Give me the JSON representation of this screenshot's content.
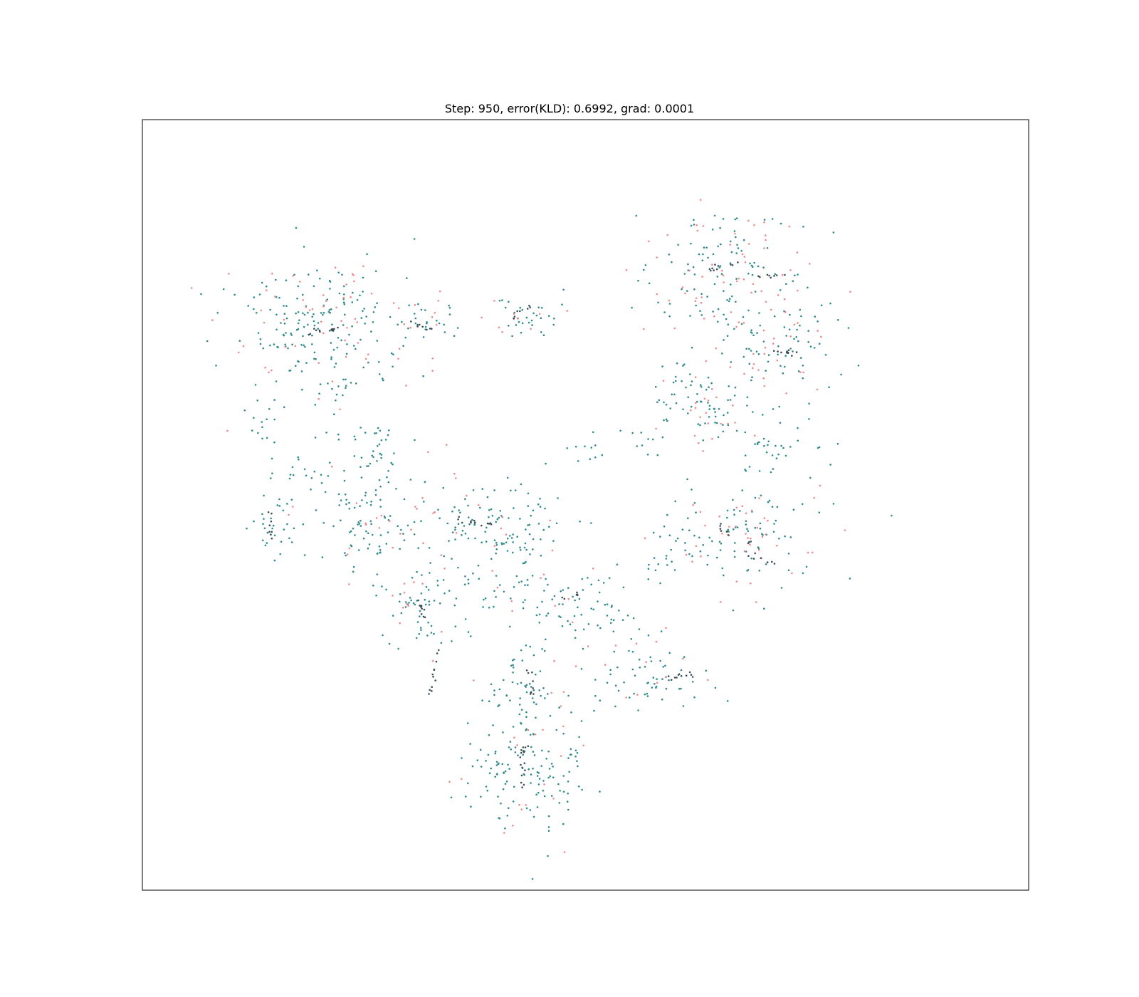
{
  "chart_data": {
    "type": "scatter",
    "title": "Step: 950, error(KLD): 0.6992, grad: 0.0001",
    "xlabel": "",
    "ylabel": "",
    "xlim": [
      -100,
      100
    ],
    "ylim": [
      -100,
      100
    ],
    "grid": false,
    "ticks": false,
    "seed": 950,
    "colors": {
      "teal": "#2e8b8b",
      "dark": "#3a4e55",
      "pink": "#f08a8a",
      "frame": "#000000"
    },
    "series": [
      {
        "color": "teal",
        "clusters": [
          {
            "cx": -60,
            "cy": 45,
            "sx": 10,
            "sy": 9,
            "n": 170
          },
          {
            "cx": -72,
            "cy": 21,
            "sx": 3,
            "sy": 2.5,
            "n": 14
          },
          {
            "cx": -47,
            "cy": 18,
            "sx": 5,
            "sy": 2,
            "n": 18
          },
          {
            "cx": -52,
            "cy": 6,
            "sx": 6,
            "sy": 4,
            "n": 22
          },
          {
            "cx": -37,
            "cy": 46,
            "sx": 5,
            "sy": 4,
            "n": 26
          },
          {
            "cx": -46,
            "cy": 12,
            "sx": 2,
            "sy": 2,
            "n": 10
          },
          {
            "cx": -65,
            "cy": 8,
            "sx": 4,
            "sy": 2,
            "n": 12
          },
          {
            "cx": -55,
            "cy": 30,
            "sx": 4,
            "sy": 2,
            "n": 10
          },
          {
            "cx": -70,
            "cy": -5,
            "sx": 3,
            "sy": 4,
            "n": 30
          },
          {
            "cx": -50,
            "cy": -5,
            "sx": 7,
            "sy": 6,
            "n": 70
          },
          {
            "cx": -36,
            "cy": -26,
            "sx": 6,
            "sy": 5,
            "n": 65
          },
          {
            "cx": -25,
            "cy": -4,
            "sx": 9,
            "sy": 6,
            "n": 90
          },
          {
            "cx": -17,
            "cy": -11,
            "sx": 4,
            "sy": 4,
            "n": 30
          },
          {
            "cx": -14,
            "cy": 50,
            "sx": 5,
            "sy": 3,
            "n": 30
          },
          {
            "cx": 31,
            "cy": 61,
            "sx": 9,
            "sy": 8,
            "n": 100
          },
          {
            "cx": 44,
            "cy": 41,
            "sx": 7,
            "sy": 6,
            "n": 70
          },
          {
            "cx": 22,
            "cy": 30,
            "sx": 4,
            "sy": 5,
            "n": 30
          },
          {
            "cx": 30,
            "cy": 24,
            "sx": 5,
            "sy": 4,
            "n": 35
          },
          {
            "cx": 43,
            "cy": 15,
            "sx": 6,
            "sy": 4,
            "n": 35
          },
          {
            "cx": 34,
            "cy": -8,
            "sx": 10,
            "sy": 7,
            "n": 100
          },
          {
            "cx": -7,
            "cy": -24,
            "sx": 8,
            "sy": 5,
            "n": 60
          },
          {
            "cx": -13,
            "cy": -45,
            "sx": 4,
            "sy": 4,
            "n": 40
          },
          {
            "cx": 14,
            "cy": -44,
            "sx": 8,
            "sy": 5,
            "n": 60
          },
          {
            "cx": -14,
            "cy": -68,
            "sx": 7,
            "sy": 10,
            "n": 150
          },
          {
            "cx": 5,
            "cy": -30,
            "sx": 4,
            "sy": 3,
            "n": 20
          },
          {
            "cx": 13,
            "cy": 17,
            "sx": 3,
            "sy": 2,
            "n": 10
          },
          {
            "cx": 2,
            "cy": 14,
            "sx": 3,
            "sy": 2,
            "n": 10
          },
          {
            "cx": 17,
            "cy": -17,
            "sx": 3,
            "sy": 2,
            "n": 8
          }
        ]
      },
      {
        "color": "pink",
        "clusters": [
          {
            "cx": -60,
            "cy": 45,
            "sx": 12,
            "sy": 10,
            "n": 55
          },
          {
            "cx": -36,
            "cy": 46,
            "sx": 6,
            "sy": 5,
            "n": 12
          },
          {
            "cx": -50,
            "cy": -5,
            "sx": 8,
            "sy": 7,
            "n": 15
          },
          {
            "cx": -25,
            "cy": -4,
            "sx": 10,
            "sy": 7,
            "n": 20
          },
          {
            "cx": -36,
            "cy": -26,
            "sx": 7,
            "sy": 6,
            "n": 12
          },
          {
            "cx": -14,
            "cy": 50,
            "sx": 6,
            "sy": 4,
            "n": 8
          },
          {
            "cx": 31,
            "cy": 61,
            "sx": 10,
            "sy": 9,
            "n": 55
          },
          {
            "cx": 44,
            "cy": 41,
            "sx": 8,
            "sy": 7,
            "n": 30
          },
          {
            "cx": 30,
            "cy": 24,
            "sx": 6,
            "sy": 6,
            "n": 22
          },
          {
            "cx": 34,
            "cy": -8,
            "sx": 11,
            "sy": 8,
            "n": 40
          },
          {
            "cx": -7,
            "cy": -24,
            "sx": 9,
            "sy": 6,
            "n": 12
          },
          {
            "cx": 14,
            "cy": -44,
            "sx": 9,
            "sy": 6,
            "n": 14
          },
          {
            "cx": -14,
            "cy": -68,
            "sx": 8,
            "sy": 11,
            "n": 22
          }
        ]
      },
      {
        "color": "dark",
        "streaks": [
          {
            "x1": -64,
            "y1": 44,
            "x2": -56,
            "y2": 46,
            "n": 14
          },
          {
            "x1": -39,
            "y1": 47,
            "x2": -33,
            "y2": 45,
            "n": 8
          },
          {
            "x1": -38,
            "y1": -23,
            "x2": -36,
            "y2": -30,
            "n": 10
          },
          {
            "x1": -71,
            "y1": -2,
            "x2": -71,
            "y2": -9,
            "n": 8
          },
          {
            "x1": -29,
            "y1": -4,
            "x2": -21,
            "y2": -5,
            "n": 12
          },
          {
            "x1": -17,
            "y1": 48,
            "x2": -12,
            "y2": 52,
            "n": 8
          },
          {
            "x1": 27,
            "y1": 61,
            "x2": 35,
            "y2": 63,
            "n": 10
          },
          {
            "x1": 39,
            "y1": 59,
            "x2": 45,
            "y2": 60,
            "n": 8
          },
          {
            "x1": 42,
            "y1": 40,
            "x2": 48,
            "y2": 39,
            "n": 10
          },
          {
            "x1": 30,
            "y1": -6,
            "x2": 38,
            "y2": -10,
            "n": 10
          },
          {
            "x1": 36,
            "y1": -13,
            "x2": 43,
            "y2": -15,
            "n": 8
          },
          {
            "x1": 18,
            "y1": -45,
            "x2": 24,
            "y2": -44,
            "n": 10
          },
          {
            "x1": -14,
            "y1": -62,
            "x2": -14,
            "y2": -74,
            "n": 16
          },
          {
            "x1": -5,
            "y1": -24,
            "x2": -1,
            "y2": -23,
            "n": 6
          },
          {
            "x1": -35,
            "y1": -49,
            "x2": -33,
            "y2": -37,
            "n": 12
          },
          {
            "x1": -13,
            "y1": -42,
            "x2": -12,
            "y2": -49,
            "n": 8
          }
        ]
      }
    ]
  }
}
